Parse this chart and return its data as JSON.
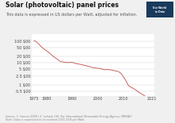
{
  "title": "Solar (photovoltaic) panel prices",
  "subtitle": "This data is expressed in US dollars per Watt, adjusted for inflation.",
  "background_color": "#f0f0f0",
  "plot_bg_color": "#ffffff",
  "line_color": "#c0504d",
  "years": [
    1975,
    1976,
    1977,
    1978,
    1979,
    1980,
    1981,
    1982,
    1983,
    1984,
    1985,
    1986,
    1987,
    1988,
    1989,
    1990,
    1991,
    1992,
    1993,
    1994,
    1995,
    1996,
    1997,
    1998,
    1999,
    2000,
    2001,
    2002,
    2003,
    2004,
    2005,
    2006,
    2007,
    2008,
    2009,
    2010,
    2011,
    2012,
    2013,
    2014,
    2015,
    2016,
    2017,
    2018,
    2019,
    2020,
    2021
  ],
  "prices": [
    106,
    90,
    70,
    52,
    42,
    35,
    28,
    22,
    18,
    15,
    12,
    11,
    10.5,
    10.2,
    10.4,
    10.5,
    9.5,
    9.0,
    8.5,
    8.0,
    7.5,
    7.0,
    6.5,
    6.0,
    5.8,
    5.6,
    5.4,
    5.0,
    4.8,
    4.9,
    4.7,
    4.5,
    4.2,
    4.0,
    3.3,
    2.3,
    1.5,
    0.9,
    0.75,
    0.65,
    0.55,
    0.45,
    0.38,
    0.32,
    0.27,
    0.22,
    0.2
  ],
  "yticks": [
    0.5,
    1.0,
    2.5,
    5.0,
    10.0,
    20.0,
    50.0,
    100.0
  ],
  "ytick_labels": [
    "0.5 $00",
    "1 $00",
    "2.5 $00",
    "5 $00",
    "10 $00",
    "20 $00",
    "50 $00",
    "100 $00"
  ],
  "xtick_positions": [
    1975,
    1980,
    1990,
    2000,
    2010,
    2021
  ],
  "xtick_labels": [
    "1975",
    "1980",
    "1990",
    "2000",
    "2010",
    "2021"
  ],
  "xlim": [
    1974,
    2022
  ],
  "ylim_log": [
    0.3,
    200
  ],
  "title_fontsize": 5.5,
  "subtitle_fontsize": 3.5,
  "tick_fontsize": 3.5,
  "footer_text": "Source: 1. Farmer 2009 / 2. Lafond, CKL (for International Renewable Energy Agency (IRENA))\nNote: Data is expressed as in constant 2021 USD per Watt",
  "owid_logo_bg": "#1a3a5c",
  "owid_logo_text": "Our World\nin Data"
}
